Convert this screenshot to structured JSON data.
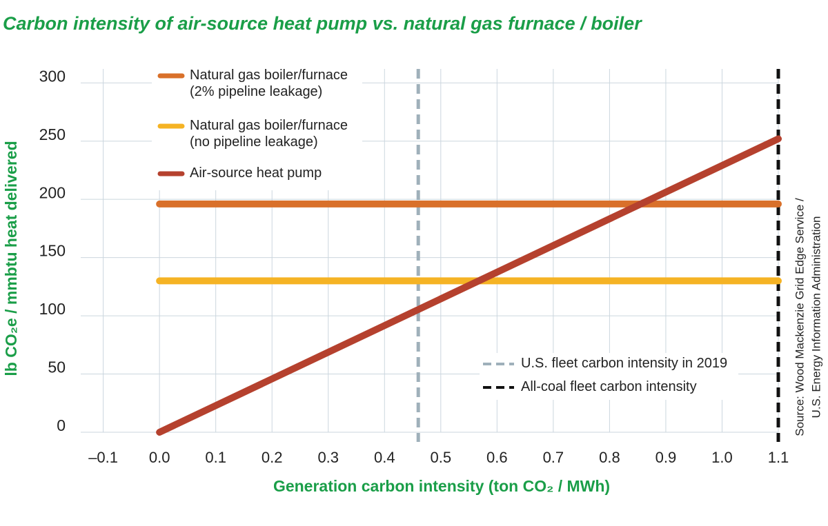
{
  "chart_data": {
    "type": "line",
    "title": "Carbon intensity of air-source heat pump vs. natural gas furnace / boiler",
    "x_label": "Generation carbon intensity (ton CO₂ / MWh)",
    "y_label": "lb CO₂e / mmbtu heat delivered",
    "source": [
      "Source: Wood Mackenzie Grid Edge Service /",
      "U.S. Energy Information Administration"
    ],
    "x": [
      0,
      1.1
    ],
    "series": [
      {
        "name": "Natural gas boiler/furnace\n(2% pipeline leakage)",
        "color": "#d9702a",
        "values": [
          196,
          196
        ]
      },
      {
        "name": "Natural gas boiler/furnace\n(no pipeline leakage)",
        "color": "#f5b324",
        "values": [
          130,
          130
        ]
      },
      {
        "name": "Air-source heat pump",
        "color": "#b5412e",
        "values": [
          0,
          252
        ]
      }
    ],
    "reference_lines": [
      {
        "name": "U.S. fleet carbon intensity in 2019",
        "x": 0.46,
        "color": "#9fb0ba"
      },
      {
        "name": "All-coal fleet carbon intensity",
        "x": 1.1,
        "color": "#111111"
      }
    ],
    "xlim": [
      -0.14,
      1.1
    ],
    "ylim": [
      0,
      312
    ],
    "xticks": [
      {
        "value": -0.1,
        "label": "–0.1"
      },
      {
        "value": 0,
        "label": "0.0"
      },
      0.1,
      0.2,
      0.3,
      0.4,
      0.5,
      0.6,
      0.7,
      0.8,
      0.9,
      {
        "value": 1,
        "label": "1.0"
      },
      1.1
    ],
    "yticks": [
      0,
      50,
      100,
      150,
      200,
      250,
      300
    ],
    "grid": true
  }
}
